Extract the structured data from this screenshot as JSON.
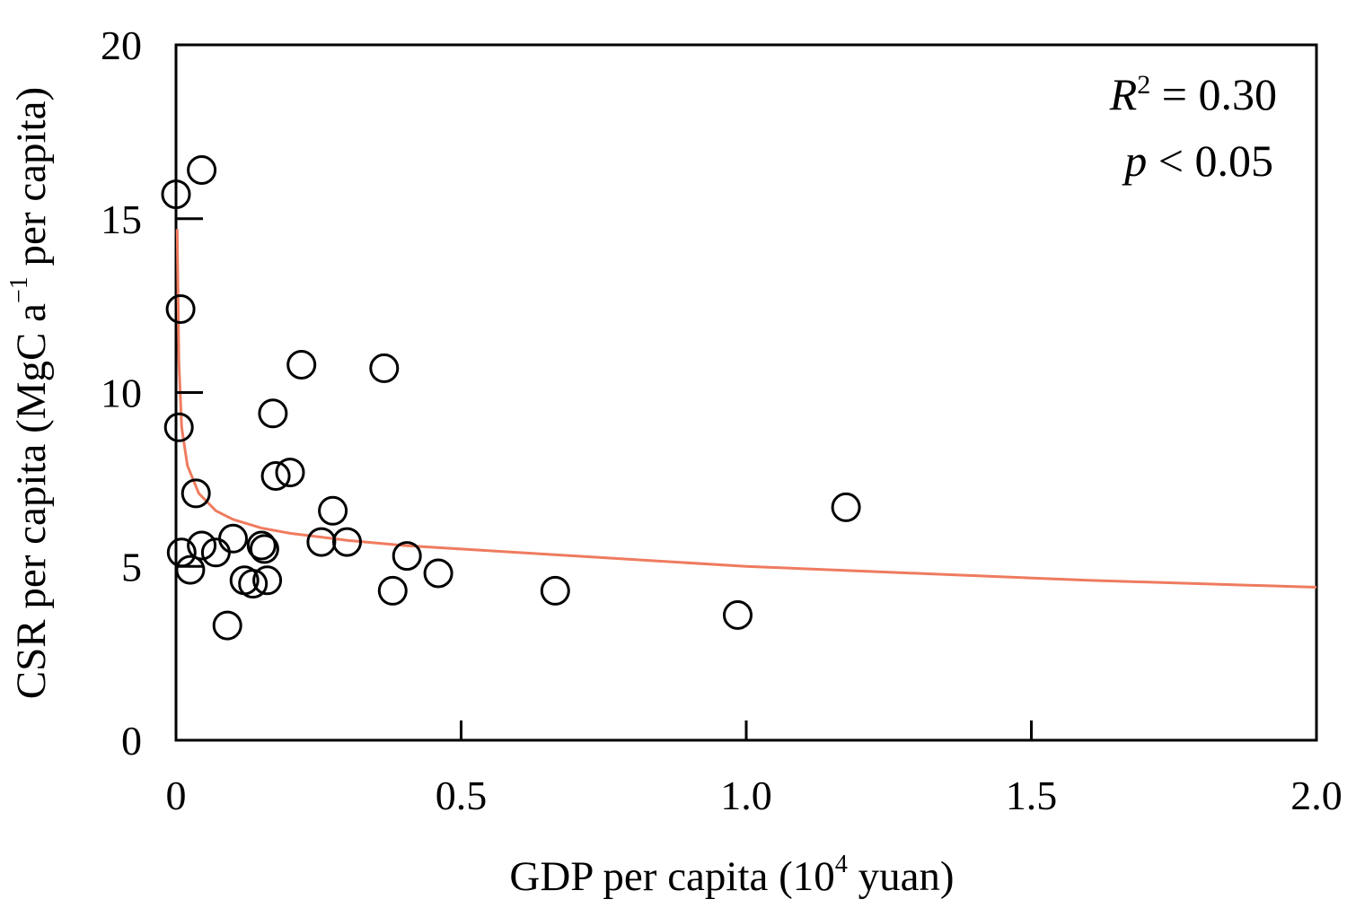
{
  "chart_data": {
    "type": "scatter",
    "xlabel": "GDP per capita  (10",
    "xlabel_sup": "4",
    "xlabel_suffix": " yuan)",
    "ylabel": "CSR per capita (MgC a",
    "ylabel_sup": "−1",
    "ylabel_suffix": " per capita)",
    "xlim": [
      0,
      2.0
    ],
    "ylim": [
      0,
      20
    ],
    "x_ticks": [
      0,
      0.5,
      1.0,
      1.5,
      2.0
    ],
    "x_tick_labels": [
      "0",
      "0.5",
      "1.0",
      "1.5",
      "2.0"
    ],
    "y_ticks": [
      0,
      5,
      10,
      15,
      20
    ],
    "y_tick_labels": [
      "0",
      "5",
      "10",
      "15",
      "20"
    ],
    "grid": false,
    "annotation": {
      "r2_label": "R",
      "r2_sup": "2",
      "r2_value": " = 0.30",
      "p_label": "p",
      "p_value": " < 0.05"
    },
    "points": {
      "marker": "open-circle",
      "x": [
        0.0,
        0.045,
        0.008,
        0.005,
        0.035,
        0.01,
        0.025,
        0.045,
        0.07,
        0.1,
        0.09,
        0.12,
        0.135,
        0.15,
        0.155,
        0.16,
        0.17,
        0.175,
        0.2,
        0.22,
        0.255,
        0.275,
        0.3,
        0.365,
        0.38,
        0.405,
        0.46,
        0.665,
        0.985,
        1.175
      ],
      "y": [
        15.7,
        16.4,
        12.4,
        9.0,
        7.1,
        5.4,
        4.9,
        5.6,
        5.4,
        5.8,
        3.3,
        4.6,
        4.5,
        5.6,
        5.5,
        4.6,
        9.4,
        7.6,
        7.7,
        10.8,
        5.7,
        6.6,
        5.7,
        10.7,
        4.3,
        5.3,
        4.8,
        4.3,
        3.6,
        6.7
      ]
    },
    "fit": {
      "type": "power",
      "color": "#ef7b5f",
      "x": [
        0.002,
        0.005,
        0.01,
        0.02,
        0.04,
        0.07,
        0.1,
        0.15,
        0.2,
        0.3,
        0.4,
        0.5,
        0.7,
        1.0,
        1.3,
        1.6,
        2.0
      ],
      "y": [
        14.7,
        10.9,
        9.0,
        7.9,
        7.1,
        6.6,
        6.35,
        6.1,
        5.95,
        5.75,
        5.6,
        5.5,
        5.3,
        5.0,
        4.8,
        4.6,
        4.4
      ]
    }
  }
}
